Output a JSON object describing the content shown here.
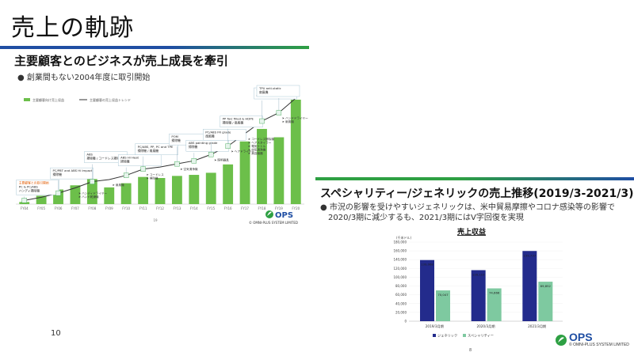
{
  "slide": {
    "title": "売上の軌跡",
    "page_number": "10"
  },
  "left": {
    "heading": "主要顧客とのビジネスが売上成長を牽引",
    "bullet": "創業間もない2004年度に取引開始",
    "page": "19",
    "logo": {
      "name": "OPS",
      "company": "© OMNI-PLUS SYSTEM LIMITED"
    }
  },
  "right": {
    "heading": "スペシャリティー/ジェネリックの売上推移(2019/3-2021/3)",
    "bullet_line1": "市況の影響を受けやすいジェネリックは、米中貿易摩擦やコロナ感染等の影響で",
    "bullet_line2": "2020/3期に減少するも、2021/3期にはV字回復を実現",
    "page": "8",
    "logo": {
      "name": "OPS",
      "company": "© OMNI-PLUS SYSTEM LIMITED"
    }
  },
  "colors": {
    "blue": "#1f4ea3",
    "green": "#2ea043",
    "bar_green": "#6cbf4a",
    "navy_bar": "#232b8c",
    "mint_bar": "#7ec9a0"
  },
  "chart_data": [
    {
      "type": "bar",
      "legend": [
        "主要顧客向け売上収益",
        "主要顧客の売上収益トレンド"
      ],
      "categories": [
        "FY04",
        "FY05",
        "FY06",
        "FY07",
        "FY08",
        "FY09",
        "FY10",
        "FY11",
        "FY12",
        "FY13",
        "FY14",
        "FY15",
        "FY16",
        "FY17",
        "FY18",
        "FY19",
        "FY20"
      ],
      "values": [
        2,
        8,
        14,
        18,
        24,
        16,
        20,
        26,
        25,
        27,
        28,
        30,
        38,
        60,
        72,
        64,
        100
      ],
      "trend": [
        2,
        5,
        9,
        14,
        20,
        22,
        26,
        32,
        34,
        37,
        40,
        46,
        54,
        66,
        78,
        86,
        100
      ],
      "callouts": [
        {
          "cat": "FY04",
          "lines": [
            "主要顧客との取引開始",
            "PC & PC/ABS",
            "ハンディ掃除機"
          ]
        },
        {
          "cat": "FY06",
          "lines": [
            "PC/PBT and ABS Hi Impact",
            "掃除機"
          ]
        },
        {
          "cat": "FY08",
          "lines": [
            "ABS",
            "掃除機 / コードレス掃除機"
          ]
        },
        {
          "cat": "FY10",
          "lines": [
            "ABS Hi Heat",
            "掃除機"
          ]
        },
        {
          "cat": "FY11",
          "lines": [
            "PC/ABS, PP, PC and TPE",
            "掃除機 / 扇風機"
          ]
        },
        {
          "cat": "FY13",
          "lines": [
            "POM",
            "掃除機"
          ]
        },
        {
          "cat": "FY14",
          "lines": [
            "ABS painting grade",
            "掃除機"
          ]
        },
        {
          "cat": "FY15",
          "lines": [
            "PC/ABS FR grade",
            "扇風機"
          ]
        },
        {
          "cat": "FY16",
          "lines": [
            "PP Talc filled & HDPE",
            "掃除機 / 扇風機"
          ]
        },
        {
          "cat": "FY18",
          "lines": [
            "TPU",
            "扇風機"
          ]
        },
        {
          "cat": "FY19",
          "lines": [
            "TPU anti-static",
            "扇風機"
          ]
        }
      ],
      "notes": [
        {
          "cat": "FY07",
          "lines": [
            "ハンディドライヤー",
            "ハンド乾燥機"
          ]
        },
        {
          "cat": "FY09",
          "lines": [
            "扇風機"
          ]
        },
        {
          "cat": "FY11",
          "lines": [
            "コードレス",
            "掃除機"
          ]
        },
        {
          "cat": "FY13",
          "lines": [
            "空気清浄機"
          ]
        },
        {
          "cat": "FY15",
          "lines": [
            "照明器具"
          ]
        },
        {
          "cat": "FY16",
          "lines": [
            "ヘアドライヤー"
          ]
        },
        {
          "cat": "FY17",
          "lines": [
            "コードレス掃除機",
            "ヘアスタイラー",
            "電気ケトル",
            "空気清浄機",
            "美容機器"
          ]
        },
        {
          "cat": "FY19",
          "lines": [
            "ハンドドライヤー",
            "扇風機"
          ]
        }
      ]
    },
    {
      "type": "bar",
      "title": "売上収益",
      "ylabel": "(千米ドル)",
      "categories": [
        "2019/3月期",
        "2020/3月期",
        "2021/3月期"
      ],
      "series": [
        {
          "name": "ジェネリック",
          "values": [
            139068,
            116110,
            159737
          ]
        },
        {
          "name": "スペシャリティー",
          "values": [
            70047,
            74666,
            89852
          ]
        }
      ],
      "value_labels": [
        [
          "139,068",
          "70,047"
        ],
        [
          "116,110",
          "74,666"
        ],
        [
          "159,737",
          "89,852"
        ]
      ],
      "ylim": [
        0,
        180000
      ],
      "yticks": [
        "0",
        "20,000",
        "40,000",
        "60,000",
        "80,000",
        "100,000",
        "120,000",
        "140,000",
        "160,000",
        "180,000"
      ],
      "legend": "bottom"
    }
  ]
}
